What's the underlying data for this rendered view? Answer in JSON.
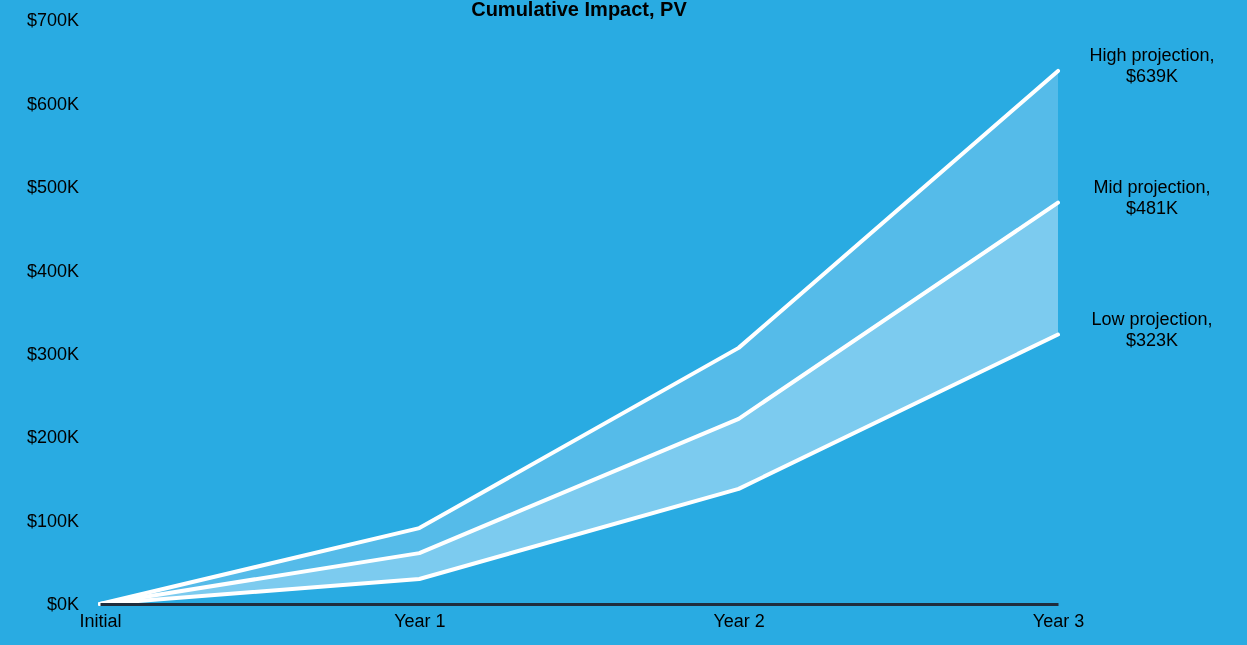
{
  "chart_data": {
    "type": "area",
    "title": "Cumulative Impact, PV",
    "categories": [
      "Initial",
      "Year 1",
      "Year 2",
      "Year 3"
    ],
    "series": [
      {
        "name": null,
        "color": "#55bbe9",
        "values": [
          0,
          91,
          307,
          639
        ]
      },
      {
        "name": null,
        "color": "#7ccbef",
        "values": [
          0,
          61,
          222,
          481
        ]
      },
      {
        "name": null,
        "color": "#29abe2",
        "values": [
          0,
          30,
          138,
          323
        ]
      }
    ],
    "ylim": [
      0,
      700
    ],
    "yticks": [
      {
        "value": 0,
        "label": "$0K"
      },
      {
        "value": 100,
        "label": "$100K"
      },
      {
        "value": 200,
        "label": "$200K"
      },
      {
        "value": 300,
        "label": "$300K"
      },
      {
        "value": 400,
        "label": "$400K"
      },
      {
        "value": 500,
        "label": "$500K"
      },
      {
        "value": 600,
        "label": "$600K"
      },
      {
        "value": 700,
        "label": "$700K"
      }
    ],
    "annotations": [
      {
        "text": "High projection, $639K",
        "x": "Year 3",
        "y": 639
      },
      {
        "text": "Mid projection, $481K",
        "x": "Year 3",
        "y": 481
      },
      {
        "text": "Low projection, $323K",
        "x": "Year 3",
        "y": 323
      }
    ],
    "grid": false
  }
}
